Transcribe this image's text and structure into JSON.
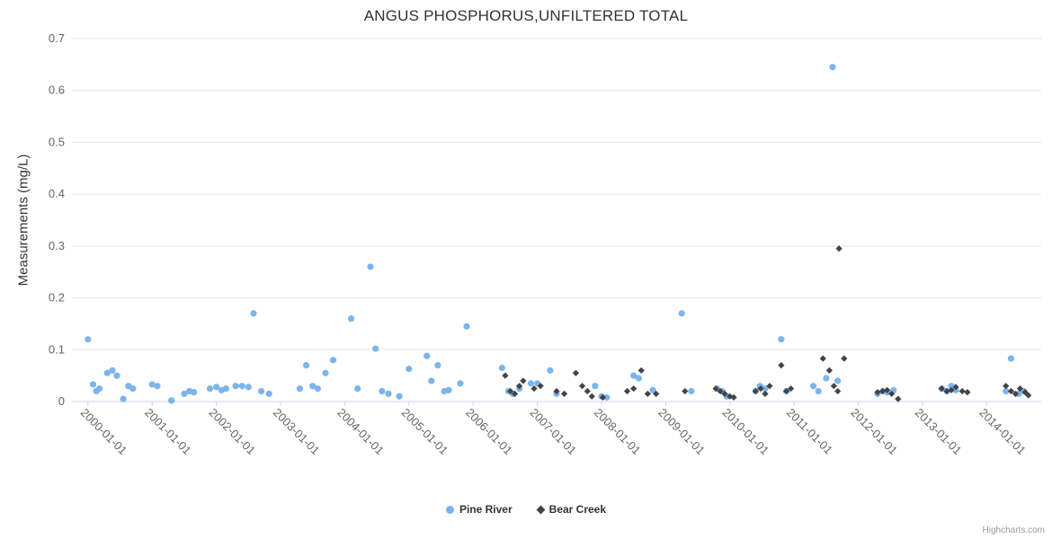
{
  "title": "ANGUS PHOSPHORUS,UNFILTERED TOTAL",
  "credit": "Highcharts.com",
  "chart_data": {
    "type": "scatter",
    "title": "ANGUS PHOSPHORUS,UNFILTERED TOTAL",
    "xlabel": "",
    "ylabel": "Measurements (mg/L)",
    "ylim": [
      0,
      0.7
    ],
    "grid": "horizontal",
    "legend_position": "bottom",
    "yticks": [
      "0",
      "0.1",
      "0.2",
      "0.3",
      "0.4",
      "0.5",
      "0.6",
      "0.7"
    ],
    "xticks": [
      "2000-01-01",
      "2001-01-01",
      "2002-01-01",
      "2003-01-01",
      "2004-01-01",
      "2005-01-01",
      "2006-01-01",
      "2007-01-01",
      "2008-01-01",
      "2009-01-01",
      "2010-01-01",
      "2011-01-01",
      "2012-01-01",
      "2013-01-01",
      "2014-01-01"
    ],
    "series": [
      {
        "name": "Pine River",
        "color": "#7cb5ec",
        "marker": "circle",
        "points": [
          [
            2000.0,
            0.12
          ],
          [
            2000.08,
            0.033
          ],
          [
            2000.13,
            0.02
          ],
          [
            2000.18,
            0.025
          ],
          [
            2000.3,
            0.055
          ],
          [
            2000.38,
            0.06
          ],
          [
            2000.45,
            0.05
          ],
          [
            2000.55,
            0.005
          ],
          [
            2000.63,
            0.03
          ],
          [
            2000.7,
            0.025
          ],
          [
            2001.0,
            0.033
          ],
          [
            2001.08,
            0.03
          ],
          [
            2001.3,
            0.002
          ],
          [
            2001.5,
            0.015
          ],
          [
            2001.58,
            0.02
          ],
          [
            2001.65,
            0.018
          ],
          [
            2001.9,
            0.025
          ],
          [
            2002.0,
            0.028
          ],
          [
            2002.08,
            0.022
          ],
          [
            2002.15,
            0.025
          ],
          [
            2002.3,
            0.03
          ],
          [
            2002.4,
            0.03
          ],
          [
            2002.5,
            0.028
          ],
          [
            2002.58,
            0.17
          ],
          [
            2002.7,
            0.02
          ],
          [
            2002.82,
            0.015
          ],
          [
            2003.3,
            0.025
          ],
          [
            2003.4,
            0.07
          ],
          [
            2003.5,
            0.03
          ],
          [
            2003.58,
            0.025
          ],
          [
            2003.7,
            0.055
          ],
          [
            2003.82,
            0.08
          ],
          [
            2004.1,
            0.16
          ],
          [
            2004.2,
            0.025
          ],
          [
            2004.4,
            0.26
          ],
          [
            2004.48,
            0.102
          ],
          [
            2004.58,
            0.02
          ],
          [
            2004.68,
            0.015
          ],
          [
            2004.85,
            0.01
          ],
          [
            2005.0,
            0.063
          ],
          [
            2005.28,
            0.088
          ],
          [
            2005.35,
            0.04
          ],
          [
            2005.45,
            0.07
          ],
          [
            2005.55,
            0.02
          ],
          [
            2005.62,
            0.022
          ],
          [
            2005.8,
            0.035
          ],
          [
            2005.9,
            0.145
          ],
          [
            2006.45,
            0.065
          ],
          [
            2006.55,
            0.02
          ],
          [
            2006.62,
            0.015
          ],
          [
            2006.72,
            0.025
          ],
          [
            2006.9,
            0.035
          ],
          [
            2007.0,
            0.035
          ],
          [
            2007.2,
            0.06
          ],
          [
            2007.3,
            0.015
          ],
          [
            2007.9,
            0.03
          ],
          [
            2008.0,
            0.01
          ],
          [
            2008.08,
            0.008
          ],
          [
            2008.5,
            0.05
          ],
          [
            2008.58,
            0.045
          ],
          [
            2008.8,
            0.022
          ],
          [
            2009.25,
            0.17
          ],
          [
            2009.4,
            0.02
          ],
          [
            2009.8,
            0.025
          ],
          [
            2009.88,
            0.02
          ],
          [
            2009.95,
            0.01
          ],
          [
            2010.4,
            0.02
          ],
          [
            2010.47,
            0.03
          ],
          [
            2010.55,
            0.025
          ],
          [
            2010.8,
            0.12
          ],
          [
            2010.88,
            0.02
          ],
          [
            2011.3,
            0.03
          ],
          [
            2011.38,
            0.02
          ],
          [
            2011.5,
            0.045
          ],
          [
            2011.6,
            0.645
          ],
          [
            2011.68,
            0.04
          ],
          [
            2012.3,
            0.015
          ],
          [
            2012.38,
            0.02
          ],
          [
            2012.45,
            0.018
          ],
          [
            2012.55,
            0.022
          ],
          [
            2013.3,
            0.025
          ],
          [
            2013.38,
            0.02
          ],
          [
            2013.45,
            0.03
          ],
          [
            2013.52,
            0.022
          ],
          [
            2014.3,
            0.02
          ],
          [
            2014.38,
            0.083
          ],
          [
            2014.5,
            0.015
          ],
          [
            2014.58,
            0.02
          ]
        ]
      },
      {
        "name": "Bear Creek",
        "color": "#434348",
        "marker": "diamond",
        "points": [
          [
            2006.5,
            0.05
          ],
          [
            2006.58,
            0.02
          ],
          [
            2006.65,
            0.015
          ],
          [
            2006.72,
            0.03
          ],
          [
            2006.78,
            0.04
          ],
          [
            2006.95,
            0.025
          ],
          [
            2007.05,
            0.03
          ],
          [
            2007.3,
            0.02
          ],
          [
            2007.42,
            0.015
          ],
          [
            2007.6,
            0.055
          ],
          [
            2007.7,
            0.03
          ],
          [
            2007.78,
            0.02
          ],
          [
            2007.85,
            0.01
          ],
          [
            2008.02,
            0.008
          ],
          [
            2008.4,
            0.02
          ],
          [
            2008.5,
            0.025
          ],
          [
            2008.62,
            0.06
          ],
          [
            2008.72,
            0.015
          ],
          [
            2008.85,
            0.015
          ],
          [
            2009.3,
            0.02
          ],
          [
            2009.78,
            0.025
          ],
          [
            2009.85,
            0.02
          ],
          [
            2009.92,
            0.015
          ],
          [
            2010.0,
            0.01
          ],
          [
            2010.06,
            0.008
          ],
          [
            2010.4,
            0.02
          ],
          [
            2010.48,
            0.025
          ],
          [
            2010.55,
            0.015
          ],
          [
            2010.62,
            0.03
          ],
          [
            2010.8,
            0.07
          ],
          [
            2010.88,
            0.02
          ],
          [
            2010.95,
            0.025
          ],
          [
            2011.45,
            0.083
          ],
          [
            2011.55,
            0.06
          ],
          [
            2011.62,
            0.03
          ],
          [
            2011.68,
            0.02
          ],
          [
            2011.7,
            0.295
          ],
          [
            2011.78,
            0.083
          ],
          [
            2012.3,
            0.018
          ],
          [
            2012.38,
            0.02
          ],
          [
            2012.45,
            0.022
          ],
          [
            2012.52,
            0.015
          ],
          [
            2012.62,
            0.005
          ],
          [
            2013.3,
            0.025
          ],
          [
            2013.38,
            0.02
          ],
          [
            2013.45,
            0.022
          ],
          [
            2013.52,
            0.028
          ],
          [
            2013.62,
            0.02
          ],
          [
            2013.7,
            0.018
          ],
          [
            2014.3,
            0.03
          ],
          [
            2014.38,
            0.02
          ],
          [
            2014.45,
            0.015
          ],
          [
            2014.52,
            0.025
          ],
          [
            2014.6,
            0.018
          ],
          [
            2014.65,
            0.012
          ]
        ]
      }
    ]
  }
}
